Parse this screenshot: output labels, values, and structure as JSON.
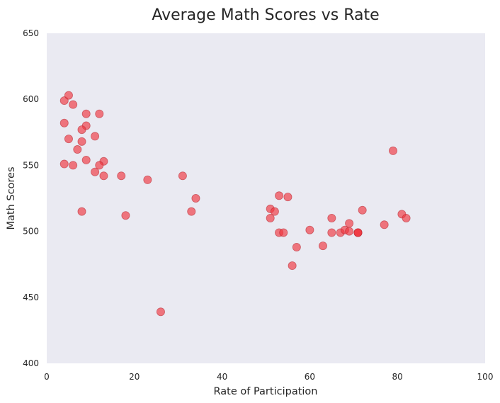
{
  "chart_data": {
    "type": "scatter",
    "title": "Average Math Scores vs Rate",
    "xlabel": "Rate of Participation",
    "ylabel": "Math Scores",
    "xlim": [
      0,
      100
    ],
    "ylim": [
      400,
      650
    ],
    "xticks": [
      0,
      20,
      40,
      60,
      80,
      100
    ],
    "yticks": [
      400,
      450,
      500,
      550,
      600,
      650
    ],
    "grid": false,
    "legend": "none",
    "colors": {
      "point": "#f0343e",
      "plot_background": "#eaeaf2"
    },
    "series": [
      {
        "points": [
          {
            "x": 4,
            "y": 599
          },
          {
            "x": 5,
            "y": 603
          },
          {
            "x": 6,
            "y": 596
          },
          {
            "x": 9,
            "y": 589
          },
          {
            "x": 12,
            "y": 589
          },
          {
            "x": 4,
            "y": 582
          },
          {
            "x": 9,
            "y": 580
          },
          {
            "x": 8,
            "y": 577
          },
          {
            "x": 5,
            "y": 570
          },
          {
            "x": 11,
            "y": 572
          },
          {
            "x": 8,
            "y": 568
          },
          {
            "x": 7,
            "y": 562
          },
          {
            "x": 9,
            "y": 554
          },
          {
            "x": 13,
            "y": 553
          },
          {
            "x": 4,
            "y": 551
          },
          {
            "x": 6,
            "y": 550
          },
          {
            "x": 12,
            "y": 550
          },
          {
            "x": 11,
            "y": 545
          },
          {
            "x": 13,
            "y": 542
          },
          {
            "x": 17,
            "y": 542
          },
          {
            "x": 23,
            "y": 539
          },
          {
            "x": 31,
            "y": 542
          },
          {
            "x": 8,
            "y": 515
          },
          {
            "x": 18,
            "y": 512
          },
          {
            "x": 26,
            "y": 439
          },
          {
            "x": 33,
            "y": 515
          },
          {
            "x": 34,
            "y": 525
          },
          {
            "x": 53,
            "y": 527
          },
          {
            "x": 55,
            "y": 526
          },
          {
            "x": 51,
            "y": 517
          },
          {
            "x": 52,
            "y": 515
          },
          {
            "x": 51,
            "y": 510
          },
          {
            "x": 53,
            "y": 499
          },
          {
            "x": 54,
            "y": 499
          },
          {
            "x": 57,
            "y": 488
          },
          {
            "x": 56,
            "y": 474
          },
          {
            "x": 60,
            "y": 501
          },
          {
            "x": 63,
            "y": 489
          },
          {
            "x": 65,
            "y": 510
          },
          {
            "x": 65,
            "y": 499
          },
          {
            "x": 67,
            "y": 499
          },
          {
            "x": 68,
            "y": 501
          },
          {
            "x": 69,
            "y": 506
          },
          {
            "x": 69,
            "y": 500
          },
          {
            "x": 71,
            "y": 499
          },
          {
            "x": 71,
            "y": 499
          },
          {
            "x": 71,
            "y": 499
          },
          {
            "x": 72,
            "y": 516
          },
          {
            "x": 77,
            "y": 505
          },
          {
            "x": 79,
            "y": 561
          },
          {
            "x": 81,
            "y": 513
          },
          {
            "x": 82,
            "y": 510
          }
        ]
      }
    ]
  }
}
